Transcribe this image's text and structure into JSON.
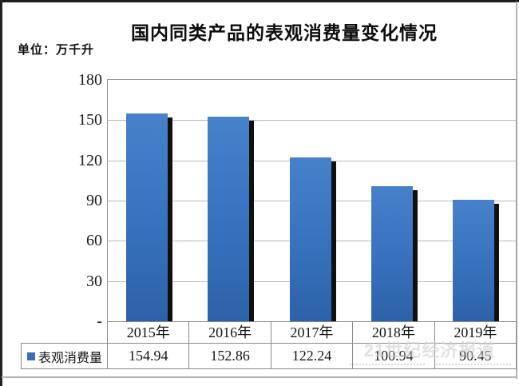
{
  "title": "国内同类产品的表观消费量变化情况",
  "unit_label": "单位：万千升",
  "watermark_text": "21世纪经济报道",
  "colors": {
    "bar_blue": "#3a74c0",
    "bar_shadow": "#101010",
    "legend_marker": "#3a6fb5",
    "gridline": "#b8b8b8",
    "table_border": "#8a8a8a"
  },
  "chart_data": {
    "type": "bar",
    "title": "国内同类产品的表观消费量变化情况",
    "unit": "万千升",
    "categories": [
      "2015年",
      "2016年",
      "2017年",
      "2018年",
      "2019年"
    ],
    "series": [
      {
        "name": "表观消费量",
        "values": [
          154.94,
          152.86,
          122.24,
          100.94,
          90.45
        ]
      }
    ],
    "ylim": [
      0,
      180
    ],
    "ytick_interval": 30,
    "ytick_labels": [
      "180",
      "150",
      "120",
      "90",
      "60",
      "30",
      "-"
    ],
    "grid": true,
    "legend_position": "bottom-left-table"
  },
  "table": {
    "legend_label": "表观消费量",
    "values_display": [
      "154.94",
      "152.86",
      "122.24",
      "100.94",
      "90.45"
    ]
  }
}
